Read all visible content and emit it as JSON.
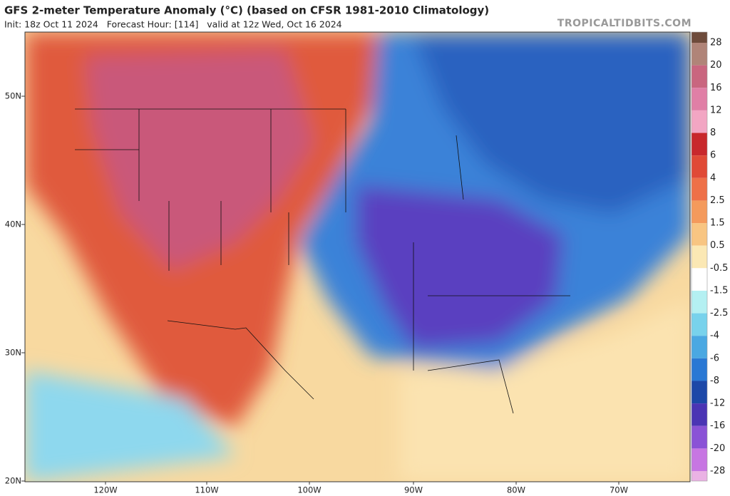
{
  "header": {
    "title": "GFS 2-meter Temperature Anomaly (°C) (based on CFSR 1981-2010 Climatology)",
    "subtitle": "Init: 18z Oct 11 2024   Forecast Hour: [114]   valid at 12z Wed, Oct 16 2024",
    "source": "TROPICALTIDBITS.COM"
  },
  "map": {
    "lat_labels": [
      "50N",
      "40N",
      "30N",
      "20N"
    ],
    "lon_labels": [
      "120W",
      "110W",
      "100W",
      "90W",
      "80W",
      "70W"
    ]
  },
  "colorbar": {
    "labels": [
      "28",
      "20",
      "16",
      "12",
      "8",
      "6",
      "4",
      "2.5",
      "1.5",
      "0.5",
      "-0.5",
      "-1.5",
      "-2.5",
      "-4",
      "-6",
      "-8",
      "-12",
      "-16",
      "-20",
      "-28"
    ],
    "colors": [
      "#6e4b3b",
      "#b08478",
      "#c9667f",
      "#e07fa6",
      "#f2a6c3",
      "#c8282c",
      "#e04a36",
      "#ee7048",
      "#f49a5c",
      "#f8c582",
      "#fbe8b4",
      "#ffffff",
      "#b4f0f2",
      "#78d2ec",
      "#4aa8e2",
      "#2a78d4",
      "#1c48a8",
      "#4a34b4",
      "#8a52d6",
      "#c776e2",
      "#eab2e4"
    ]
  }
}
